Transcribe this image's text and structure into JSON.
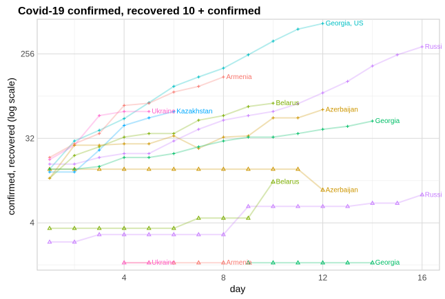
{
  "chart_data": {
    "type": "line",
    "title": "Covid-19 confirmed, recovered 10 + confirmed",
    "xlabel": "day",
    "ylabel": "confirmed, recovered (log scale)",
    "y_scale": "log2",
    "xlim": [
      0.5,
      16.7
    ],
    "ylim": [
      1.25,
      600
    ],
    "x_ticks": [
      4,
      8,
      12,
      16
    ],
    "y_ticks": [
      4,
      32,
      256
    ],
    "grid": true,
    "legend": "none (series labelled directly at line ends)",
    "marker_confirmed": "plus",
    "marker_recovered": "triangle",
    "series": [
      {
        "name": "Georgia, US",
        "color": "#00bfc4",
        "kind": "confirmed",
        "x": [
          1,
          2,
          3,
          4,
          5,
          6,
          7,
          8,
          9,
          10,
          11,
          12
        ],
        "y": [
          15,
          30,
          39,
          52,
          77,
          115,
          145,
          180,
          250,
          350,
          470,
          540
        ]
      },
      {
        "name": "Armenia",
        "color": "#f8766d",
        "kind": "confirmed",
        "x": [
          1,
          2,
          3,
          4,
          5,
          6,
          7,
          8
        ],
        "y": [
          20,
          28,
          36,
          72,
          76,
          100,
          115,
          145
        ]
      },
      {
        "name": "Armenia",
        "color": "#f8766d",
        "kind": "recovered",
        "x": [
          4,
          5,
          6,
          7,
          8
        ],
        "y": [
          1.5,
          1.5,
          1.5,
          1.5,
          1.5
        ]
      },
      {
        "name": "Russia",
        "color": "#c77cff",
        "kind": "confirmed",
        "x": [
          1,
          2,
          3,
          4,
          5,
          6,
          7,
          8,
          9,
          10,
          11,
          12,
          13,
          14,
          15,
          16
        ],
        "y": [
          17,
          17,
          20,
          22,
          22,
          30,
          40,
          50,
          56,
          62,
          75,
          98,
          130,
          190,
          250,
          305
        ]
      },
      {
        "name": "Russia",
        "color": "#c77cff",
        "kind": "recovered",
        "x": [
          1,
          2,
          3,
          4,
          5,
          6,
          7,
          8,
          9,
          10,
          11,
          12,
          13,
          14,
          15,
          16
        ],
        "y": [
          2.5,
          2.5,
          3,
          3,
          3,
          3,
          3,
          3,
          6,
          6,
          6,
          6,
          6,
          6.5,
          6.5,
          8
        ]
      },
      {
        "name": "Ukraine",
        "color": "#ff61cc",
        "kind": "confirmed",
        "x": [
          1,
          2,
          3,
          4,
          5
        ],
        "y": [
          19,
          27,
          56,
          62,
          62
        ]
      },
      {
        "name": "Ukraine",
        "color": "#ff61cc",
        "kind": "recovered",
        "x": [
          4,
          5
        ],
        "y": [
          1.5,
          1.5
        ]
      },
      {
        "name": "Kazakhstan",
        "color": "#00a9ff",
        "kind": "confirmed",
        "x": [
          1,
          2,
          3,
          4,
          5,
          6
        ],
        "y": [
          14,
          14,
          24,
          44,
          53,
          62
        ]
      },
      {
        "name": "Belarus",
        "color": "#7cae00",
        "kind": "confirmed",
        "x": [
          1,
          2,
          3,
          4,
          5,
          6,
          7,
          8,
          9,
          10
        ],
        "y": [
          12,
          21,
          26,
          33,
          36,
          36,
          50,
          56,
          70,
          76
        ]
      },
      {
        "name": "Belarus",
        "color": "#7cae00",
        "kind": "recovered",
        "x": [
          1,
          2,
          3,
          4,
          5,
          6,
          7,
          8,
          9,
          10
        ],
        "y": [
          3.5,
          3.5,
          3.5,
          3.5,
          3.5,
          3.5,
          4.5,
          4.5,
          4.5,
          11
        ]
      },
      {
        "name": "Azerbaijan",
        "color": "#cd9600",
        "kind": "confirmed",
        "x": [
          1,
          2,
          3,
          4,
          5,
          6,
          7,
          8,
          9,
          10,
          11,
          12
        ],
        "y": [
          12,
          27,
          27,
          28,
          28,
          34,
          25,
          33,
          34,
          53,
          53,
          65
        ]
      },
      {
        "name": "Azerbaijan",
        "color": "#cd9600",
        "kind": "recovered",
        "x": [
          1,
          2,
          3,
          4,
          5,
          6,
          7,
          8,
          9,
          10,
          11,
          12
        ],
        "y": [
          15,
          15,
          15,
          15,
          15,
          15,
          15,
          15,
          15,
          15,
          15,
          9
        ]
      },
      {
        "name": "Georgia",
        "color": "#00be67",
        "kind": "confirmed",
        "x": [
          1,
          2,
          3,
          4,
          5,
          6,
          7,
          8,
          9,
          10,
          11,
          12,
          13,
          14
        ],
        "y": [
          15,
          15,
          16,
          20,
          20,
          22,
          26,
          30,
          33,
          33,
          36,
          40,
          43,
          49
        ]
      },
      {
        "name": "Georgia",
        "color": "#00be67",
        "kind": "recovered",
        "x": [
          9,
          10,
          11,
          12,
          13,
          14
        ],
        "y": [
          1.5,
          1.5,
          1.5,
          1.5,
          1.5,
          1.5
        ]
      }
    ],
    "end_labels": [
      {
        "text": "Georgia, US",
        "color": "#00bfc4",
        "x": 12,
        "y": 540
      },
      {
        "text": "Armenia",
        "color": "#f8766d",
        "x": 8,
        "y": 145
      },
      {
        "text": "Russi",
        "color": "#c77cff",
        "x": 16,
        "y": 305
      },
      {
        "text": "Belarus",
        "color": "#7cae00",
        "x": 10,
        "y": 76
      },
      {
        "text": "Ukraine",
        "color": "#ff61cc",
        "x": 5,
        "y": 62
      },
      {
        "text": "Kazakhstan",
        "color": "#00a9ff",
        "x": 6,
        "y": 62
      },
      {
        "text": "Azerbaijan",
        "color": "#cd9600",
        "x": 12,
        "y": 65
      },
      {
        "text": "Georgia",
        "color": "#00be67",
        "x": 14,
        "y": 49
      },
      {
        "text": "Belarus",
        "color": "#7cae00",
        "x": 10,
        "y": 11
      },
      {
        "text": "Azerbaijan",
        "color": "#cd9600",
        "x": 12,
        "y": 9
      },
      {
        "text": "Russi",
        "color": "#c77cff",
        "x": 16,
        "y": 8
      },
      {
        "text": "Ukraine",
        "color": "#ff61cc",
        "x": 5,
        "y": 1.5
      },
      {
        "text": "Armenia",
        "color": "#f8766d",
        "x": 8,
        "y": 1.5
      },
      {
        "text": "Georgia",
        "color": "#00be67",
        "x": 14,
        "y": 1.5
      }
    ]
  }
}
